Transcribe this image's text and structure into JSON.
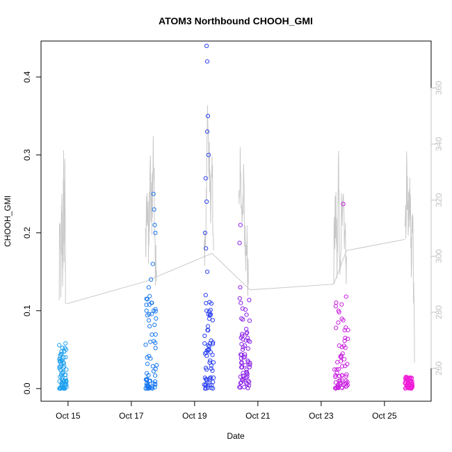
{
  "chart_data": {
    "type": "scatter",
    "title": "ATOM3 Northbound CHOOH_GMI",
    "xlabel": "Date",
    "ylabel": "CHOOH_GMI",
    "x_ticks": [
      "Oct 15",
      "Oct 17",
      "Oct 19",
      "Oct 21",
      "Oct 23",
      "Oct 25"
    ],
    "x_tick_days": [
      15,
      17,
      19,
      21,
      23,
      25
    ],
    "xlim_days": [
      14.3,
      26.3
    ],
    "ylim": [
      -0.01,
      0.44
    ],
    "y_ticks": [
      0.0,
      0.1,
      0.2,
      0.3,
      0.4
    ],
    "y2lim": [
      250,
      375
    ],
    "y2_ticks": [
      260,
      280,
      300,
      320,
      340,
      360
    ],
    "grid": false,
    "colors": {
      "gray_line": "#c8c8c8",
      "right_axis": "#c0c0c0"
    },
    "series": [
      {
        "color": "#1ea0f0",
        "x_range": [
          14.72,
          14.95
        ],
        "points": [
          [
            14.73,
            0.028
          ],
          [
            14.75,
            0.015
          ],
          [
            14.78,
            0.032
          ],
          [
            14.8,
            0.008
          ],
          [
            14.82,
            0.036
          ],
          [
            14.84,
            0.02
          ],
          [
            14.86,
            0.04
          ],
          [
            14.88,
            0.048
          ],
          [
            14.9,
            0.052
          ],
          [
            14.92,
            0.058
          ],
          [
            14.94,
            0.01
          ],
          [
            14.95,
            0.002
          ]
        ]
      },
      {
        "color": "#1a78f0",
        "x_range": [
          17.45,
          17.8
        ],
        "points": [
          [
            17.48,
            0.1
          ],
          [
            17.5,
            0.04
          ],
          [
            17.55,
            0.13
          ],
          [
            17.58,
            0.08
          ],
          [
            17.6,
            0.06
          ],
          [
            17.62,
            0.14
          ],
          [
            17.65,
            0.11
          ],
          [
            17.7,
            0.25
          ],
          [
            17.72,
            0.23
          ],
          [
            17.74,
            0.21
          ],
          [
            17.76,
            0.2
          ],
          [
            17.78,
            0.09
          ],
          [
            17.8,
            0.03
          ],
          [
            17.52,
            0.005
          ],
          [
            17.68,
            0.16
          ]
        ]
      },
      {
        "color": "#2a3ff0",
        "x_range": [
          19.3,
          19.6
        ],
        "points": [
          [
            19.38,
            0.44
          ],
          [
            19.4,
            0.42
          ],
          [
            19.42,
            0.35
          ],
          [
            19.4,
            0.33
          ],
          [
            19.44,
            0.3
          ],
          [
            19.35,
            0.27
          ],
          [
            19.38,
            0.24
          ],
          [
            19.33,
            0.2
          ],
          [
            19.36,
            0.18
          ],
          [
            19.4,
            0.15
          ],
          [
            19.35,
            0.12
          ],
          [
            19.38,
            0.1
          ],
          [
            19.42,
            0.08
          ],
          [
            19.45,
            0.05
          ],
          [
            19.36,
            0.012
          ],
          [
            19.48,
            0.005
          ]
        ]
      },
      {
        "color": "#8a1fe8",
        "x_range": [
          20.4,
          20.75
        ],
        "points": [
          [
            20.45,
            0.21
          ],
          [
            20.42,
            0.187
          ],
          [
            20.44,
            0.13
          ],
          [
            20.46,
            0.11
          ],
          [
            20.48,
            0.09
          ],
          [
            20.5,
            0.07
          ],
          [
            20.52,
            0.05
          ],
          [
            20.55,
            0.04
          ],
          [
            20.6,
            0.03
          ],
          [
            20.65,
            0.02
          ],
          [
            20.7,
            0.01
          ],
          [
            20.72,
            0.004
          ]
        ]
      },
      {
        "color": "#c91fe0",
        "x_range": [
          23.4,
          23.85
        ],
        "points": [
          [
            23.7,
            0.237
          ],
          [
            23.76,
            0.065
          ],
          [
            23.72,
            0.055
          ],
          [
            23.68,
            0.045
          ],
          [
            23.62,
            0.035
          ],
          [
            23.55,
            0.025
          ],
          [
            23.5,
            0.02
          ],
          [
            23.45,
            0.015
          ],
          [
            23.6,
            0.01
          ],
          [
            23.75,
            0.006
          ],
          [
            23.8,
            0.003
          ]
        ]
      },
      {
        "color": "#f01fd8",
        "x_range": [
          25.65,
          25.9
        ],
        "points": [
          [
            25.68,
            0.015
          ],
          [
            25.72,
            0.012
          ],
          [
            25.76,
            0.01
          ],
          [
            25.8,
            0.009
          ],
          [
            25.85,
            0.008
          ],
          [
            25.88,
            0.006
          ],
          [
            25.7,
            0.004
          ],
          [
            25.82,
            0.005
          ]
        ]
      }
    ],
    "line_series": {
      "axis": "right",
      "segments": [
        {
          "x_range": [
            14.72,
            14.93
          ],
          "points": [
            [
              14.72,
              293
            ],
            [
              14.74,
              313
            ],
            [
              14.77,
              290
            ],
            [
              14.8,
              318
            ],
            [
              14.83,
              296
            ],
            [
              14.86,
              327
            ],
            [
              14.88,
              302
            ],
            [
              14.9,
              339
            ],
            [
              14.92,
              283
            ]
          ]
        },
        {
          "x_range": [
            17.45,
            17.8
          ],
          "points": [
            [
              17.45,
              300
            ],
            [
              17.5,
              320
            ],
            [
              17.55,
              305
            ],
            [
              17.6,
              327
            ],
            [
              17.65,
              314
            ],
            [
              17.7,
              342
            ],
            [
              17.75,
              300
            ],
            [
              17.8,
              291
            ]
          ]
        },
        {
          "x_range": [
            19.3,
            19.6
          ],
          "points": [
            [
              19.3,
              298
            ],
            [
              19.35,
              310
            ],
            [
              19.4,
              346
            ],
            [
              19.45,
              340
            ],
            [
              19.5,
              315
            ],
            [
              19.55,
              332
            ],
            [
              19.6,
              302
            ]
          ]
        },
        {
          "x_range": [
            20.4,
            20.75
          ],
          "points": [
            [
              20.4,
              322
            ],
            [
              20.45,
              332
            ],
            [
              20.5,
              310
            ],
            [
              20.55,
              331
            ],
            [
              20.6,
              296
            ],
            [
              20.65,
              308
            ],
            [
              20.7,
              290
            ]
          ]
        },
        {
          "x_range": [
            23.4,
            23.85
          ],
          "points": [
            [
              23.4,
              297
            ],
            [
              23.45,
              320
            ],
            [
              23.5,
              302
            ],
            [
              23.55,
              327
            ],
            [
              23.6,
              295
            ],
            [
              23.65,
              315
            ],
            [
              23.7,
              318
            ],
            [
              23.75,
              305
            ],
            [
              23.8,
              300
            ]
          ]
        },
        {
          "x_range": [
            25.65,
            25.95
          ],
          "points": [
            [
              25.65,
              302
            ],
            [
              25.7,
              327
            ],
            [
              25.75,
              315
            ],
            [
              25.8,
              322
            ],
            [
              25.85,
              300
            ],
            [
              25.9,
              310
            ],
            [
              25.95,
              262
            ]
          ]
        }
      ],
      "connectors": [
        [
          14.95,
          283
        ],
        [
          17.45,
          291
        ],
        [
          19.55,
          301
        ],
        [
          20.75,
          288
        ],
        [
          23.4,
          290
        ],
        [
          23.8,
          302
        ],
        [
          25.65,
          306
        ]
      ]
    }
  }
}
